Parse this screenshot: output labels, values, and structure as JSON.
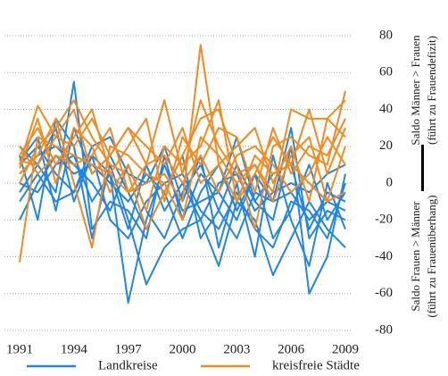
{
  "chart_data": {
    "type": "line",
    "x": [
      1991,
      1992,
      1993,
      1994,
      1995,
      1996,
      1997,
      1998,
      1999,
      2000,
      2001,
      2002,
      2003,
      2004,
      2005,
      2006,
      2007,
      2008,
      2009
    ],
    "xlim": [
      1991,
      2009
    ],
    "xticks": [
      1991,
      1994,
      1997,
      2000,
      2003,
      2006,
      2009
    ],
    "ylim": [
      -80,
      80
    ],
    "yticks": [
      -80,
      -60,
      -40,
      -20,
      0,
      20,
      40,
      60,
      80
    ],
    "grid": true,
    "annotations": [
      "Saldo Männer > Frauen",
      "(führt zu Frauendefizit)",
      "Saldo Frauen > Männer",
      "(führt zu Frauenüberhang)"
    ],
    "series": [
      {
        "name": "Landkreise",
        "color": "#1f86e8",
        "values": [
          [
            -5,
            10,
            30,
            -10,
            15,
            5,
            -65,
            -20,
            10,
            -15,
            -10,
            -5,
            -20,
            5,
            -10,
            -5,
            -20,
            -10,
            -15
          ],
          [
            15,
            -20,
            35,
            20,
            -30,
            10,
            -20,
            -55,
            -35,
            -25,
            -20,
            -45,
            -10,
            -20,
            -50,
            -30,
            -10,
            -25,
            -35
          ],
          [
            20,
            10,
            -5,
            55,
            -25,
            -10,
            -15,
            -30,
            15,
            -20,
            5,
            -5,
            25,
            -10,
            -20,
            20,
            -60,
            -40,
            5
          ],
          [
            -20,
            0,
            15,
            5,
            10,
            0,
            -10,
            5,
            -5,
            -30,
            -5,
            10,
            -15,
            5,
            -30,
            -15,
            10,
            -20,
            -5
          ],
          [
            10,
            20,
            5,
            -5,
            20,
            25,
            5,
            0,
            20,
            -10,
            15,
            -35,
            0,
            -40,
            15,
            -20,
            -45,
            0,
            -25
          ],
          [
            0,
            -5,
            10,
            15,
            -10,
            5,
            -25,
            10,
            -15,
            0,
            -20,
            0,
            5,
            -15,
            -5,
            0,
            -5,
            5,
            10
          ],
          [
            5,
            15,
            20,
            10,
            0,
            -15,
            10,
            -15,
            -30,
            -5,
            10,
            -15,
            -30,
            -5,
            -10,
            30,
            -30,
            -15,
            -20
          ],
          [
            -10,
            5,
            -10,
            -5,
            15,
            -20,
            -30,
            -10,
            0,
            5,
            -15,
            -25,
            -5,
            -25,
            -35,
            -10,
            -15,
            -30,
            0
          ],
          [
            12,
            25,
            -15,
            30,
            5,
            15,
            -5,
            -25,
            -5,
            15,
            -30,
            -15,
            10,
            -10,
            5,
            10,
            -25,
            -5,
            -10
          ]
        ]
      },
      {
        "name": "kreisfreie Städte",
        "color": "#f28a1e",
        "values": [
          [
            -43,
            25,
            20,
            15,
            10,
            5,
            -5,
            0,
            5,
            -10,
            75,
            10,
            -10,
            15,
            5,
            10,
            0,
            -10,
            20
          ],
          [
            10,
            42,
            25,
            20,
            35,
            15,
            30,
            10,
            45,
            5,
            45,
            20,
            5,
            10,
            -5,
            40,
            35,
            35,
            25
          ],
          [
            0,
            20,
            30,
            45,
            25,
            10,
            5,
            -25,
            -5,
            15,
            35,
            40,
            10,
            -25,
            20,
            25,
            15,
            10,
            50
          ],
          [
            5,
            15,
            35,
            0,
            -35,
            20,
            15,
            5,
            0,
            -20,
            25,
            15,
            0,
            10,
            -10,
            15,
            25,
            -10,
            -5
          ],
          [
            15,
            30,
            10,
            25,
            40,
            5,
            20,
            35,
            -10,
            25,
            10,
            30,
            25,
            -5,
            30,
            5,
            20,
            15,
            35
          ],
          [
            20,
            5,
            15,
            10,
            15,
            30,
            -5,
            10,
            15,
            0,
            15,
            -5,
            15,
            20,
            10,
            -5,
            5,
            25,
            10
          ],
          [
            8,
            35,
            0,
            30,
            20,
            -5,
            10,
            -15,
            20,
            10,
            20,
            45,
            -10,
            5,
            25,
            10,
            40,
            5,
            30
          ],
          [
            12,
            10,
            25,
            40,
            5,
            15,
            30,
            20,
            10,
            30,
            0,
            10,
            20,
            30,
            0,
            20,
            -10,
            35,
            45
          ]
        ]
      }
    ]
  }
}
